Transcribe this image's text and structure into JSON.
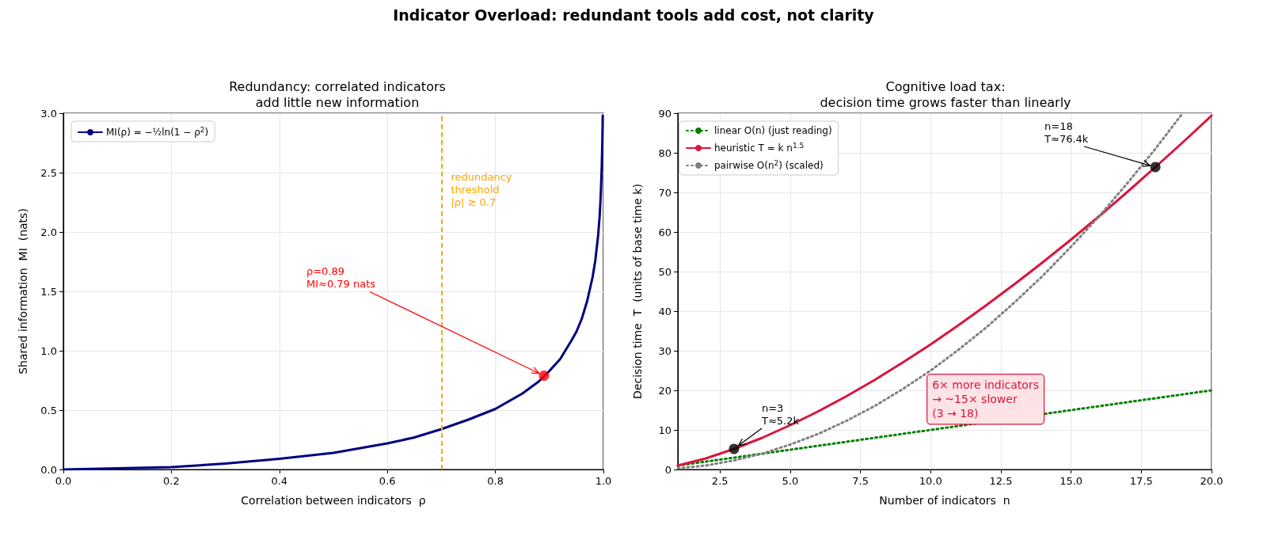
{
  "chart_data": [
    {
      "type": "line",
      "title": "Redundancy: correlated indicators\nadd little new information",
      "xlabel": "Correlation between indicators  ρ",
      "ylabel": "Shared information  MI  (nats)",
      "xlim": [
        0,
        1
      ],
      "xticks": [
        {
          "value": 0,
          "label": "0.0"
        },
        0.2,
        0.4,
        0.6,
        0.8,
        {
          "value": 1,
          "label": "1.0"
        }
      ],
      "ylim": [
        0,
        3
      ],
      "yticks": [
        {
          "value": 0,
          "label": "0.0"
        },
        0.5,
        {
          "value": 1,
          "label": "1.0"
        },
        1.5,
        {
          "value": 2,
          "label": "2.0"
        },
        2.5,
        {
          "value": 3,
          "label": "3.0"
        }
      ],
      "grid": true,
      "legend": "top left",
      "series": [
        {
          "name": "MI(ρ) = −½ln(1 − ρ$^{2}$)",
          "color": "#000080",
          "line_style": "solid",
          "marker": "none",
          "x": [
            0,
            0.1,
            0.2,
            0.3,
            0.4,
            0.5,
            0.6,
            0.65,
            0.7,
            0.75,
            0.8,
            0.85,
            0.88,
            0.9,
            0.92,
            0.94,
            0.95,
            0.96,
            0.97,
            0.98,
            0.985,
            0.99,
            0.993,
            0.995,
            0.997,
            0.998,
            0.9985,
            0.9987
          ],
          "values": [
            0,
            0.01,
            0.02,
            0.05,
            0.09,
            0.14,
            0.22,
            0.27,
            0.34,
            0.42,
            0.51,
            0.64,
            0.74,
            0.83,
            0.93,
            1.08,
            1.16,
            1.27,
            1.42,
            1.62,
            1.76,
            1.96,
            2.13,
            2.3,
            2.56,
            2.76,
            2.9,
            2.98
          ]
        },
        {
          "type": "scatter",
          "color": "#ff0000",
          "marker": "circle",
          "x": [
            0.89
          ],
          "values": [
            0.79
          ]
        }
      ],
      "ref_lines": [
        {
          "axis": "x",
          "value": 0.7,
          "label": "redundancy\nthreshold\n|ρ| ≳ 0.7",
          "color": "#ffa500",
          "line_style": "dashed"
        }
      ],
      "annotations": [
        "Indicator Overload: redundant tools add cost, not clarity",
        {
          "text": "ρ=0.89\nMI≈0.79 nats",
          "x": 0.89,
          "y": 0.79
        }
      ]
    },
    {
      "type": "line",
      "title": "Cognitive load tax:\ndecision time grows faster than linearly",
      "xlabel": "Number of indicators  n",
      "ylabel": "Decision time  T  (units of base time k)",
      "xlim": [
        1,
        20
      ],
      "xticks": [
        2.5,
        {
          "value": 5,
          "label": "5.0"
        },
        7.5,
        {
          "value": 10,
          "label": "10.0"
        },
        12.5,
        {
          "value": 15,
          "label": "15.0"
        },
        17.5,
        {
          "value": 20,
          "label": "20.0"
        }
      ],
      "ylim": [
        0,
        90
      ],
      "yticks": [
        0,
        10,
        20,
        30,
        40,
        50,
        60,
        70,
        80,
        90
      ],
      "grid": true,
      "legend": "top left",
      "series": [
        {
          "name": "linear O(n) (just reading)",
          "color": "#008000",
          "line_style": "dotted",
          "marker": "none",
          "x": [
            1,
            20
          ],
          "values": [
            1,
            20
          ]
        },
        {
          "name": "heuristic T = k n$^{1.5}$",
          "color": "#dc143c",
          "line_style": "solid",
          "marker": "none",
          "x": [
            1,
            2,
            3,
            4,
            5,
            6,
            7,
            8,
            9,
            10,
            11,
            12,
            13,
            14,
            15,
            16,
            17,
            18,
            19,
            20
          ],
          "values": [
            1,
            2.8,
            5.2,
            8,
            11.2,
            14.7,
            18.5,
            22.6,
            27,
            31.6,
            36.5,
            41.6,
            46.9,
            52.4,
            58.1,
            64,
            70.1,
            76.4,
            82.8,
            89.4
          ]
        },
        {
          "name": "pairwise O(n$^{2}$) (scaled)",
          "color": "#808080",
          "line_style": "dotted",
          "marker": "none",
          "x": [
            1,
            2,
            3,
            4,
            5,
            6,
            7,
            8,
            9,
            10,
            11,
            12,
            13,
            14,
            15,
            16,
            17,
            18,
            18.95
          ],
          "values": [
            0.3,
            1,
            2.3,
            4,
            6.3,
            9,
            12.3,
            16,
            20.3,
            25,
            30.3,
            36,
            42.3,
            49,
            56.3,
            64,
            72.3,
            81,
            89.8
          ]
        },
        {
          "type": "scatter",
          "color": "#000000",
          "marker": "circle",
          "x": [
            3,
            18
          ],
          "values": [
            5.2,
            76.4
          ]
        }
      ],
      "annotations": [
        {
          "text": "n=3\nT≈5.2k",
          "x": 3,
          "y": 5.2
        },
        {
          "text": "n=18\nT≈76.4k",
          "x": 18,
          "y": 76.4
        },
        "6× more indicators\n→ ~15× slower\n(3 → 18)"
      ]
    }
  ]
}
